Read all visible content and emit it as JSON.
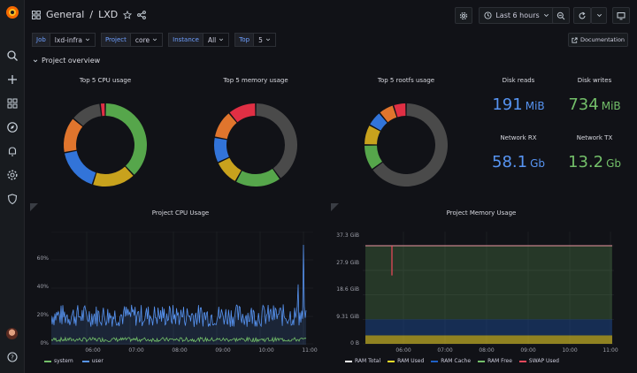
{
  "breadcrumb": {
    "folder": "General",
    "separator": "/",
    "dashboard": "LXD"
  },
  "toolbar": {
    "time_range": "Last 6 hours"
  },
  "variables": [
    {
      "label": "Job",
      "value": "lxd-infra"
    },
    {
      "label": "Project",
      "value": "core"
    },
    {
      "label": "Instance",
      "value": "All"
    },
    {
      "label": "Top",
      "value": "5"
    }
  ],
  "documentation_label": "Documentation",
  "row_title": "Project overview",
  "donuts": [
    {
      "title": "Top 5 CPU usage",
      "slices": [
        {
          "value": 38,
          "color": "#56a64b"
        },
        {
          "value": 17,
          "color": "#c8a21d"
        },
        {
          "value": 17,
          "color": "#3274d9"
        },
        {
          "value": 14,
          "color": "#e0752d"
        },
        {
          "value": 12,
          "color": "#4a4a4a"
        },
        {
          "value": 2,
          "color": "#e02f44"
        }
      ]
    },
    {
      "title": "Top 5 memory usage",
      "slices": [
        {
          "value": 40,
          "color": "#4a4a4a"
        },
        {
          "value": 18,
          "color": "#56a64b"
        },
        {
          "value": 10,
          "color": "#c8a21d"
        },
        {
          "value": 10,
          "color": "#3274d9"
        },
        {
          "value": 11,
          "color": "#e0752d"
        },
        {
          "value": 11,
          "color": "#e02f44"
        }
      ]
    },
    {
      "title": "Top 5 rootfs usage",
      "slices": [
        {
          "value": 65,
          "color": "#4a4a4a"
        },
        {
          "value": 10,
          "color": "#56a64b"
        },
        {
          "value": 8,
          "color": "#c8a21d"
        },
        {
          "value": 6,
          "color": "#3274d9"
        },
        {
          "value": 6,
          "color": "#e0752d"
        },
        {
          "value": 5,
          "color": "#e02f44"
        }
      ]
    }
  ],
  "stats": [
    {
      "title": "Disk reads",
      "value": "191",
      "unit": "MiB",
      "color": "#5794f2"
    },
    {
      "title": "Disk writes",
      "value": "734",
      "unit": "MiB",
      "color": "#73bf69"
    },
    {
      "title": "Network RX",
      "value": "58.1",
      "unit": "Gb",
      "color": "#5794f2"
    },
    {
      "title": "Network TX",
      "value": "13.2",
      "unit": "Gb",
      "color": "#73bf69"
    }
  ],
  "cpu_panel": {
    "title": "Project CPU Usage",
    "y_ticks": [
      "60%",
      "40%",
      "20%",
      "0%"
    ],
    "x_ticks": [
      "06:00",
      "07:00",
      "08:00",
      "09:00",
      "10:00",
      "11:00"
    ],
    "legend": [
      {
        "name": "system",
        "color": "#73bf69"
      },
      {
        "name": "user",
        "color": "#5794f2"
      }
    ]
  },
  "mem_panel": {
    "title": "Project Memory Usage",
    "y_ticks": [
      "37.3 GiB",
      "27.9 GiB",
      "18.6 GiB",
      "9.31 GiB",
      "0 B"
    ],
    "x_ticks": [
      "06:00",
      "07:00",
      "08:00",
      "09:00",
      "10:00",
      "11:00"
    ],
    "legend": [
      {
        "name": "RAM Total",
        "color": "#ffffff"
      },
      {
        "name": "RAM Used",
        "color": "#fade2a"
      },
      {
        "name": "RAM Cache",
        "color": "#1f60c4"
      },
      {
        "name": "RAM Free",
        "color": "#73bf69"
      },
      {
        "name": "SWAP Used",
        "color": "#f2495c"
      }
    ]
  }
}
